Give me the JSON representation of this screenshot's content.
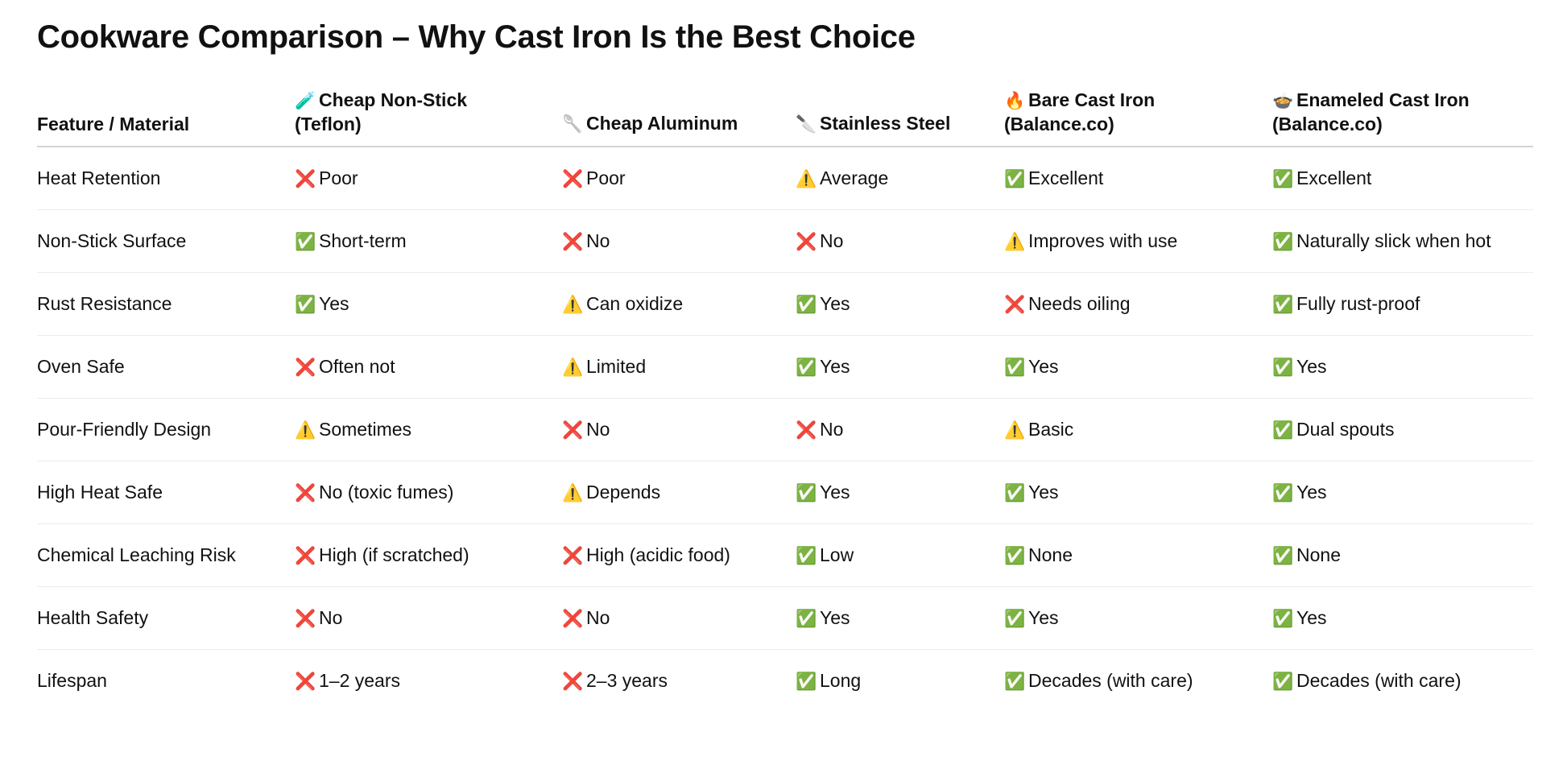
{
  "title": "Cookware Comparison – Why Cast Iron Is the Best Choice",
  "headers": [
    {
      "icon": "",
      "line1": "Feature / Material",
      "line2": ""
    },
    {
      "icon": "🧪",
      "line1": "Cheap Non-Stick",
      "line2": "(Teflon)"
    },
    {
      "icon": "🥄",
      "line1": "Cheap Aluminum",
      "line2": ""
    },
    {
      "icon": "🔪",
      "line1": "Stainless Steel",
      "line2": ""
    },
    {
      "icon": "🔥",
      "line1": "Bare Cast Iron",
      "line2": "(Balance.co)"
    },
    {
      "icon": "🍲",
      "line1": "Enameled Cast Iron",
      "line2": "(Balance.co)"
    }
  ],
  "icons": {
    "no": "❌",
    "yes": "✅",
    "warn": "⚠️"
  },
  "rows": [
    {
      "feature": "Heat Retention",
      "cells": [
        [
          "no",
          "Poor"
        ],
        [
          "no",
          "Poor"
        ],
        [
          "warn",
          "Average"
        ],
        [
          "yes",
          "Excellent"
        ],
        [
          "yes",
          "Excellent"
        ]
      ]
    },
    {
      "feature": "Non-Stick Surface",
      "cells": [
        [
          "yes",
          "Short-term"
        ],
        [
          "no",
          "No"
        ],
        [
          "no",
          "No"
        ],
        [
          "warn",
          "Improves with use"
        ],
        [
          "yes",
          "Naturally slick when hot"
        ]
      ]
    },
    {
      "feature": "Rust Resistance",
      "cells": [
        [
          "yes",
          "Yes"
        ],
        [
          "warn",
          "Can oxidize"
        ],
        [
          "yes",
          "Yes"
        ],
        [
          "no",
          "Needs oiling"
        ],
        [
          "yes",
          "Fully rust-proof"
        ]
      ]
    },
    {
      "feature": "Oven Safe",
      "cells": [
        [
          "no",
          "Often not"
        ],
        [
          "warn",
          "Limited"
        ],
        [
          "yes",
          "Yes"
        ],
        [
          "yes",
          "Yes"
        ],
        [
          "yes",
          "Yes"
        ]
      ]
    },
    {
      "feature": "Pour-Friendly Design",
      "cells": [
        [
          "warn",
          "Sometimes"
        ],
        [
          "no",
          "No"
        ],
        [
          "no",
          "No"
        ],
        [
          "warn",
          "Basic"
        ],
        [
          "yes",
          "Dual spouts"
        ]
      ]
    },
    {
      "feature": "High Heat Safe",
      "cells": [
        [
          "no",
          "No (toxic fumes)"
        ],
        [
          "warn",
          "Depends"
        ],
        [
          "yes",
          "Yes"
        ],
        [
          "yes",
          "Yes"
        ],
        [
          "yes",
          "Yes"
        ]
      ]
    },
    {
      "feature": "Chemical Leaching Risk",
      "cells": [
        [
          "no",
          "High (if scratched)"
        ],
        [
          "no",
          "High (acidic food)"
        ],
        [
          "yes",
          "Low"
        ],
        [
          "yes",
          "None"
        ],
        [
          "yes",
          "None"
        ]
      ]
    },
    {
      "feature": "Health Safety",
      "cells": [
        [
          "no",
          "No"
        ],
        [
          "no",
          "No"
        ],
        [
          "yes",
          "Yes"
        ],
        [
          "yes",
          "Yes"
        ],
        [
          "yes",
          "Yes"
        ]
      ]
    },
    {
      "feature": "Lifespan",
      "cells": [
        [
          "no",
          "1–2 years"
        ],
        [
          "no",
          "2–3 years"
        ],
        [
          "yes",
          "Long"
        ],
        [
          "yes",
          "Decades (with care)"
        ],
        [
          "yes",
          "Decades (with care)"
        ]
      ]
    }
  ]
}
